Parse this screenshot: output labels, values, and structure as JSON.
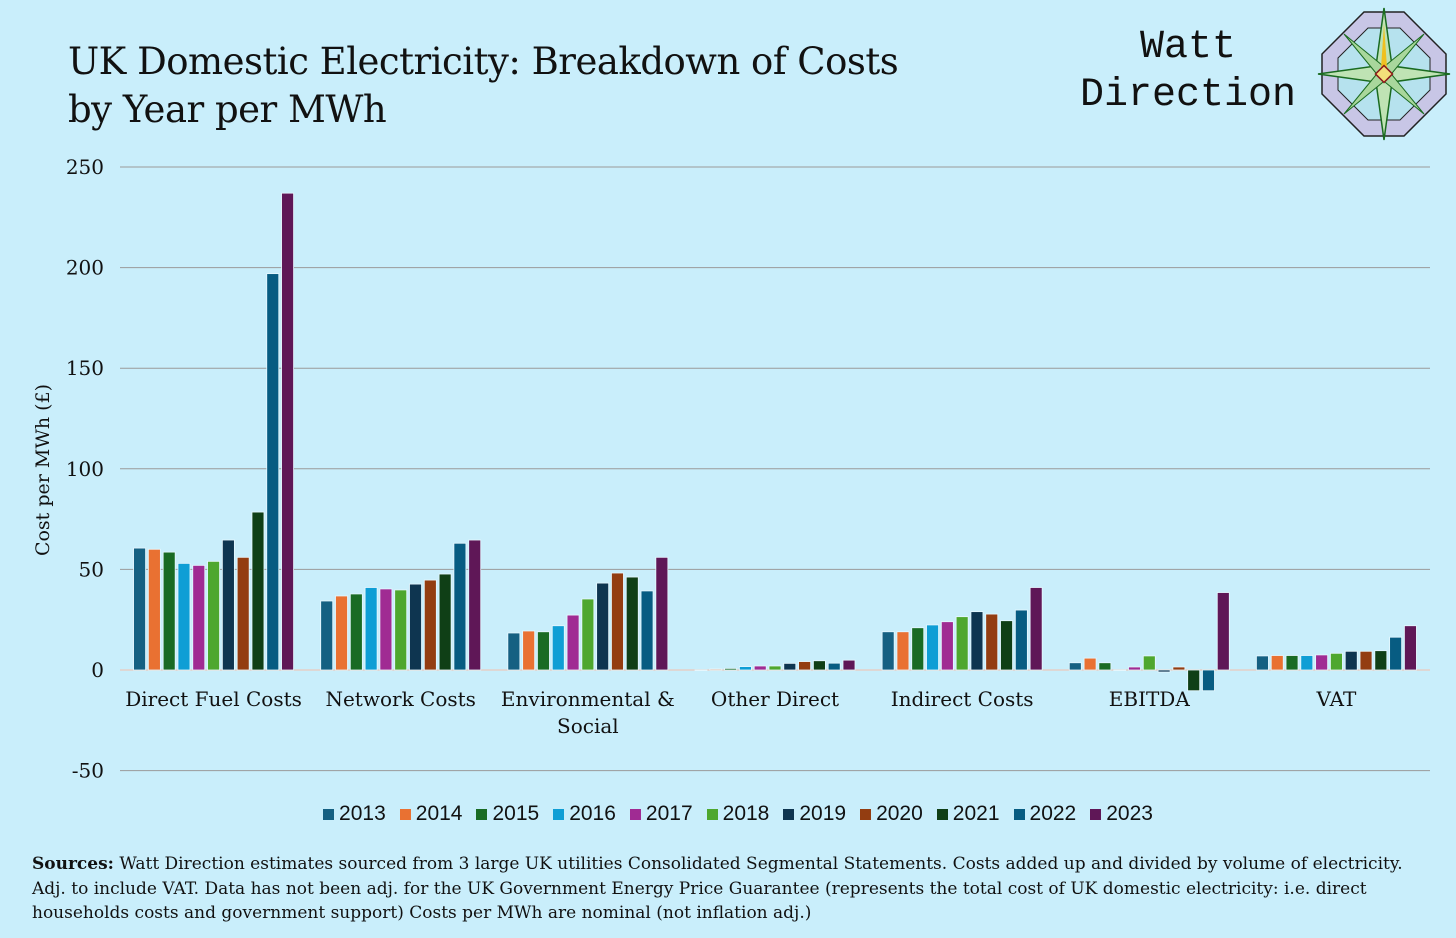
{
  "title_line1": "UK Domestic Electricity: Breakdown of Costs",
  "title_line2": "by Year per MWh",
  "logo": {
    "line1": "Watt",
    "line2": "Direction"
  },
  "chart_data": {
    "type": "bar",
    "ylabel": "Cost per MWh (£)",
    "ylim": [
      -50,
      250
    ],
    "yticks": [
      -50,
      0,
      50,
      100,
      150,
      200,
      250
    ],
    "grid": true,
    "legend_position": "bottom",
    "categories": [
      "Direct Fuel Costs",
      "Network Costs",
      "Environmental & Social",
      "Other Direct",
      "Indirect Costs",
      "EBITDA",
      "VAT"
    ],
    "category_labels": [
      [
        "Direct Fuel Costs"
      ],
      [
        "Network Costs"
      ],
      [
        "Environmental &",
        "Social"
      ],
      [
        "Other Direct"
      ],
      [
        "Indirect Costs"
      ],
      [
        "EBITDA"
      ],
      [
        "VAT"
      ]
    ],
    "series": [
      {
        "name": "2013",
        "color": "#156082",
        "values": [
          60.6,
          34.3,
          18.4,
          0,
          19,
          3.6,
          7
        ]
      },
      {
        "name": "2014",
        "color": "#E97132",
        "values": [
          60,
          36.8,
          19.4,
          0.5,
          19,
          5.9,
          7.2
        ]
      },
      {
        "name": "2015",
        "color": "#196B24",
        "values": [
          58.6,
          37.8,
          19,
          0.8,
          21,
          3.6,
          7.2
        ]
      },
      {
        "name": "2016",
        "color": "#0F9ED5",
        "values": [
          53,
          41,
          22,
          1.7,
          22.4,
          0,
          7.2
        ]
      },
      {
        "name": "2017",
        "color": "#A02B93",
        "values": [
          52,
          40.3,
          27.3,
          2,
          24,
          1.5,
          7.5
        ]
      },
      {
        "name": "2018",
        "color": "#4EA72E",
        "values": [
          54,
          39.8,
          35.3,
          2,
          26.5,
          7,
          8.3
        ]
      },
      {
        "name": "2019",
        "color": "#0E3550",
        "values": [
          64.6,
          42.7,
          43.2,
          3.3,
          29,
          -1,
          9.3
        ]
      },
      {
        "name": "2020",
        "color": "#933D11",
        "values": [
          56,
          44.7,
          48.2,
          4.2,
          27.8,
          1.5,
          9.3
        ]
      },
      {
        "name": "2021",
        "color": "#0F3F16",
        "values": [
          78.5,
          47.7,
          46.2,
          4.6,
          24.5,
          -10.3,
          9.6
        ]
      },
      {
        "name": "2022",
        "color": "#075C82",
        "values": [
          197,
          63,
          39.3,
          3.4,
          29.8,
          -10.3,
          16.3
        ]
      },
      {
        "name": "2023",
        "color": "#5F1757",
        "values": [
          237,
          64.6,
          56,
          4.9,
          41,
          38.5,
          22
        ]
      }
    ]
  },
  "sources": {
    "label": "Sources:",
    "text": " Watt Direction estimates sourced from 3 large UK utilities Consolidated Segmental Statements. Costs added up and divided by volume of electricity. Adj.  to include VAT. Data has not been adj. for the  UK Government Energy Price Guarantee (represents the total cost of UK domestic electricity: i.e.  direct households costs and government support) Costs per MWh are nominal (not inflation adj.)"
  }
}
